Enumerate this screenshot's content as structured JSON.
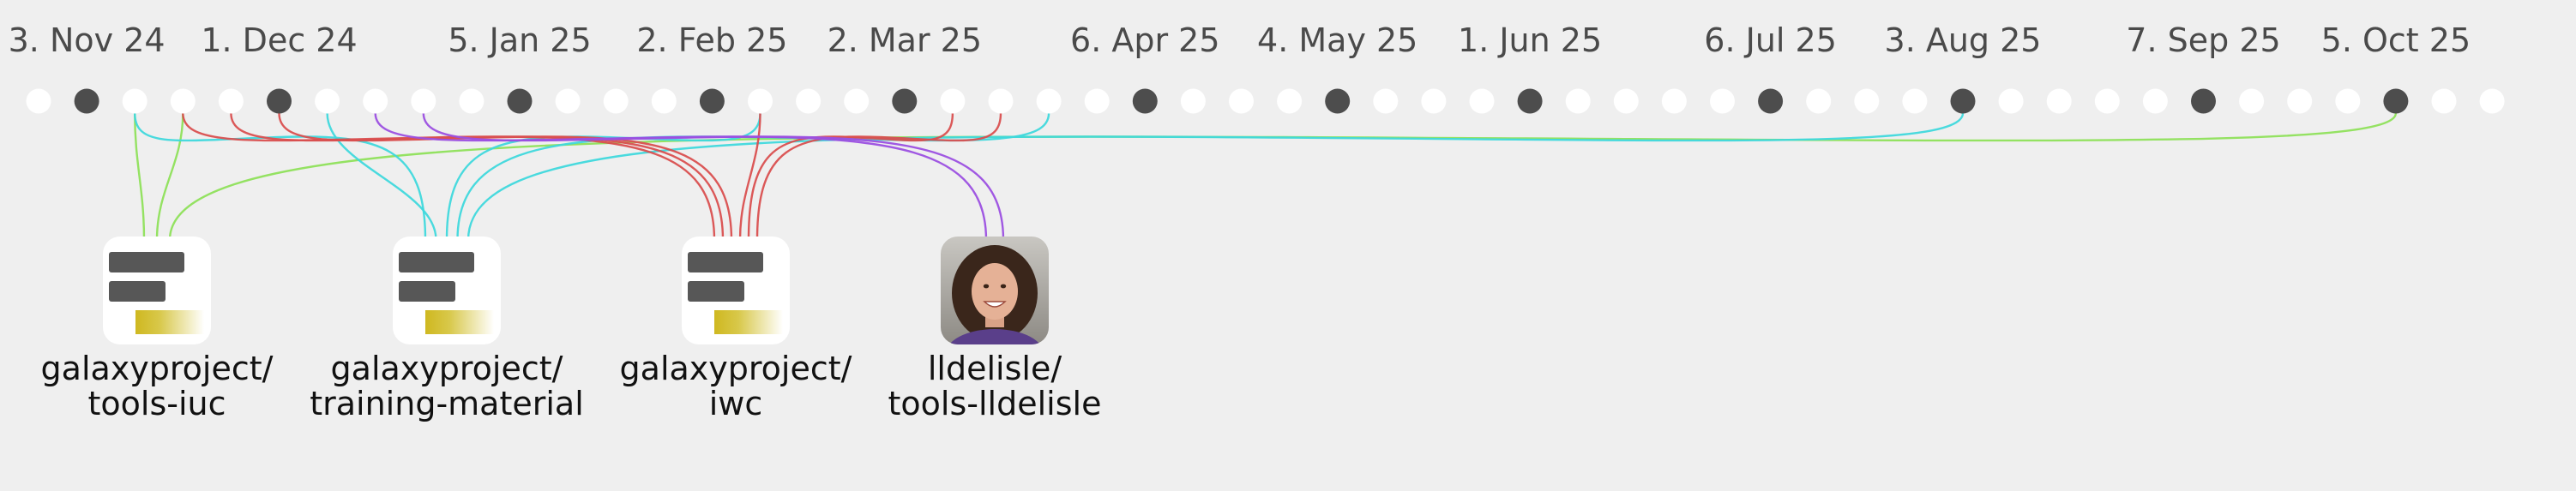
{
  "timeline": {
    "labels": [
      {
        "text": "3. Nov 24",
        "dot": 1
      },
      {
        "text": "1. Dec 24",
        "dot": 5
      },
      {
        "text": "5. Jan 25",
        "dot": 10
      },
      {
        "text": "2. Feb 25",
        "dot": 14
      },
      {
        "text": "2. Mar 25",
        "dot": 18
      },
      {
        "text": "6. Apr 25",
        "dot": 23
      },
      {
        "text": "4. May 25",
        "dot": 27
      },
      {
        "text": "1. Jun 25",
        "dot": 31
      },
      {
        "text": "6. Jul 25",
        "dot": 36
      },
      {
        "text": "3. Aug 25",
        "dot": 40
      },
      {
        "text": "7. Sep 25",
        "dot": 45
      },
      {
        "text": "5. Oct 25",
        "dot": 49
      }
    ],
    "dot_count": 52,
    "filled_dots": [
      1,
      5,
      10,
      14,
      18,
      23,
      27,
      31,
      36,
      40,
      45,
      49
    ],
    "colors": {
      "filled_dot": "#4d4d4d",
      "empty_dot": "#ffffff"
    }
  },
  "repos": [
    {
      "id": "tools-iuc",
      "line1": "galaxyproject/",
      "line2": "tools-iuc",
      "kind": "org"
    },
    {
      "id": "training-material",
      "line1": "galaxyproject/",
      "line2": "training-material",
      "kind": "org"
    },
    {
      "id": "iwc",
      "line1": "galaxyproject/",
      "line2": "iwc",
      "kind": "org"
    },
    {
      "id": "tools-lldelisle",
      "line1": "lldelisle/",
      "line2": "tools-lldelisle",
      "kind": "avatar"
    }
  ],
  "connections": [
    {
      "dot": 2,
      "repo": 0,
      "color": "#8ee05a"
    },
    {
      "dot": 3,
      "repo": 0,
      "color": "#8ee05a"
    },
    {
      "dot": 49,
      "repo": 0,
      "color": "#8ee05a"
    },
    {
      "dot": 2,
      "repo": 1,
      "color": "#3fd8dc"
    },
    {
      "dot": 6,
      "repo": 1,
      "color": "#3fd8dc"
    },
    {
      "dot": 15,
      "repo": 1,
      "color": "#3fd8dc"
    },
    {
      "dot": 21,
      "repo": 1,
      "color": "#3fd8dc"
    },
    {
      "dot": 40,
      "repo": 1,
      "color": "#3fd8dc"
    },
    {
      "dot": 3,
      "repo": 2,
      "color": "#d94f4f"
    },
    {
      "dot": 4,
      "repo": 2,
      "color": "#d94f4f"
    },
    {
      "dot": 5,
      "repo": 2,
      "color": "#d94f4f"
    },
    {
      "dot": 15,
      "repo": 2,
      "color": "#d94f4f"
    },
    {
      "dot": 19,
      "repo": 2,
      "color": "#d94f4f"
    },
    {
      "dot": 20,
      "repo": 2,
      "color": "#d94f4f"
    },
    {
      "dot": 7,
      "repo": 3,
      "color": "#9b4fe0"
    },
    {
      "dot": 8,
      "repo": 3,
      "color": "#9b4fe0"
    }
  ]
}
